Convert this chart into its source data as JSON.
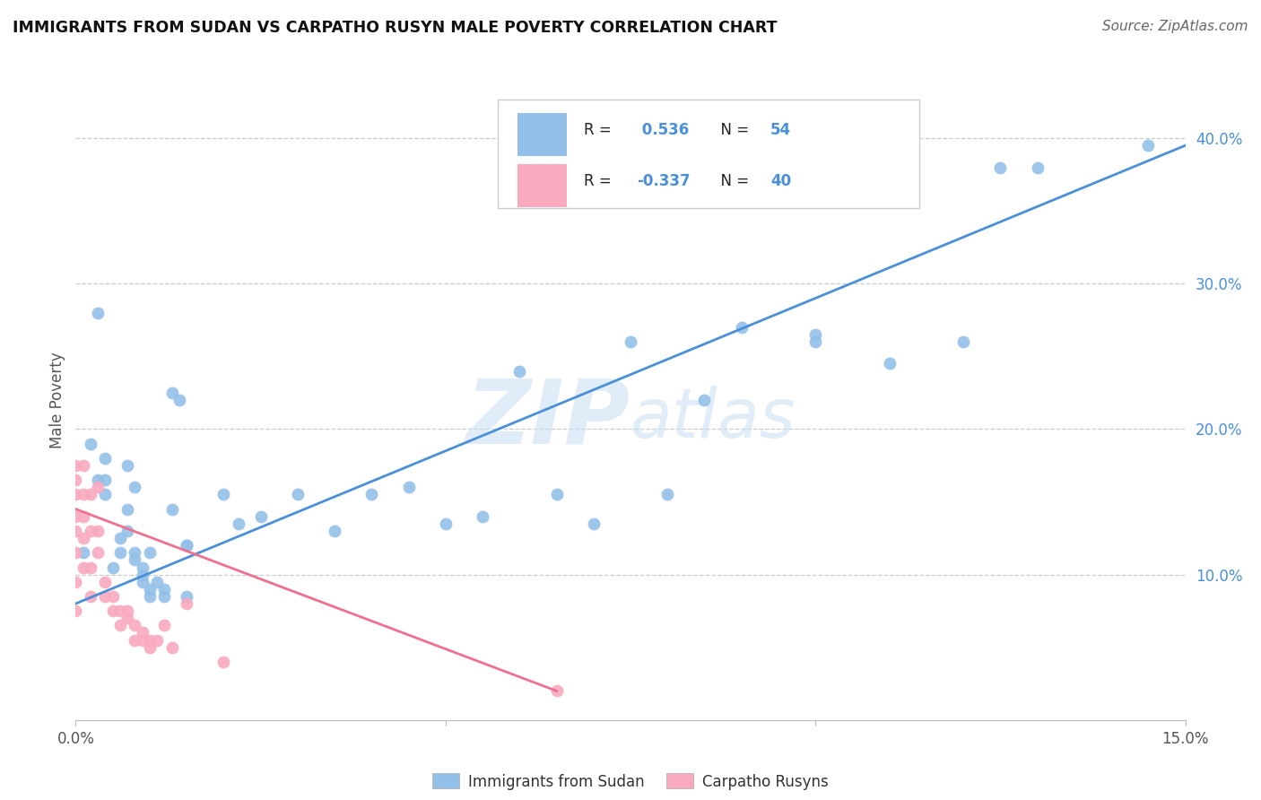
{
  "title": "IMMIGRANTS FROM SUDAN VS CARPATHO RUSYN MALE POVERTY CORRELATION CHART",
  "source": "Source: ZipAtlas.com",
  "ylabel": "Male Poverty",
  "right_yticks": [
    "40.0%",
    "30.0%",
    "20.0%",
    "10.0%"
  ],
  "right_ytick_vals": [
    0.4,
    0.3,
    0.2,
    0.1
  ],
  "xlim": [
    0.0,
    0.15
  ],
  "ylim": [
    0.0,
    0.44
  ],
  "sudan_color": "#92C0E8",
  "rusyn_color": "#F9AABF",
  "line_sudan_color": "#4A90D9",
  "line_rusyn_color": "#F07090",
  "watermark_zip": "ZIP",
  "watermark_atlas": "atlas",
  "sudan_x": [
    0.001,
    0.002,
    0.003,
    0.004,
    0.004,
    0.005,
    0.006,
    0.006,
    0.007,
    0.007,
    0.008,
    0.008,
    0.009,
    0.009,
    0.01,
    0.01,
    0.011,
    0.012,
    0.012,
    0.013,
    0.014,
    0.015,
    0.015,
    0.02,
    0.022,
    0.025,
    0.03,
    0.035,
    0.04,
    0.045,
    0.05,
    0.055,
    0.06,
    0.07,
    0.075,
    0.08,
    0.09,
    0.1,
    0.11,
    0.12,
    0.13,
    0.145,
    0.003,
    0.004,
    0.007,
    0.008,
    0.009,
    0.01,
    0.013,
    0.015,
    0.065,
    0.085,
    0.1,
    0.125
  ],
  "sudan_y": [
    0.115,
    0.19,
    0.165,
    0.155,
    0.18,
    0.105,
    0.115,
    0.125,
    0.145,
    0.175,
    0.11,
    0.16,
    0.095,
    0.105,
    0.085,
    0.115,
    0.095,
    0.085,
    0.09,
    0.225,
    0.22,
    0.085,
    0.12,
    0.155,
    0.135,
    0.14,
    0.155,
    0.13,
    0.155,
    0.16,
    0.135,
    0.14,
    0.24,
    0.135,
    0.26,
    0.155,
    0.27,
    0.26,
    0.245,
    0.26,
    0.38,
    0.395,
    0.28,
    0.165,
    0.13,
    0.115,
    0.1,
    0.09,
    0.145,
    0.12,
    0.155,
    0.22,
    0.265,
    0.38
  ],
  "rusyn_x": [
    0.0,
    0.0,
    0.0,
    0.0,
    0.0,
    0.0,
    0.0,
    0.0,
    0.001,
    0.001,
    0.001,
    0.001,
    0.001,
    0.002,
    0.002,
    0.002,
    0.002,
    0.003,
    0.003,
    0.003,
    0.004,
    0.004,
    0.005,
    0.005,
    0.006,
    0.006,
    0.007,
    0.007,
    0.008,
    0.008,
    0.009,
    0.009,
    0.01,
    0.01,
    0.011,
    0.012,
    0.013,
    0.015,
    0.02,
    0.065
  ],
  "rusyn_y": [
    0.175,
    0.165,
    0.155,
    0.14,
    0.13,
    0.115,
    0.095,
    0.075,
    0.175,
    0.155,
    0.14,
    0.125,
    0.105,
    0.155,
    0.13,
    0.105,
    0.085,
    0.16,
    0.13,
    0.115,
    0.095,
    0.085,
    0.085,
    0.075,
    0.075,
    0.065,
    0.075,
    0.07,
    0.065,
    0.055,
    0.055,
    0.06,
    0.055,
    0.05,
    0.055,
    0.065,
    0.05,
    0.08,
    0.04,
    0.02
  ],
  "sudan_line_x": [
    0.0,
    0.15
  ],
  "sudan_line_y": [
    0.08,
    0.395
  ],
  "rusyn_line_x": [
    0.0,
    0.065
  ],
  "rusyn_line_y": [
    0.145,
    0.02
  ],
  "legend_r1_label": "R = ",
  "legend_r1_val": " 0.536",
  "legend_r1_n": "N = 54",
  "legend_r2_label": "R = ",
  "legend_r2_val": "-0.337",
  "legend_r2_n": "N = 40"
}
